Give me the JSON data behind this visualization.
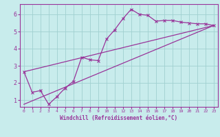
{
  "xlabel": "Windchill (Refroidissement éolien,°C)",
  "background_color": "#c8ecec",
  "grid_color": "#a0d0d0",
  "line_color": "#993399",
  "xlim": [
    -0.5,
    23.5
  ],
  "ylim": [
    0.6,
    6.6
  ],
  "xticks": [
    0,
    1,
    2,
    3,
    4,
    5,
    6,
    7,
    8,
    9,
    10,
    11,
    12,
    13,
    14,
    15,
    16,
    17,
    18,
    19,
    20,
    21,
    22,
    23
  ],
  "yticks": [
    1,
    2,
    3,
    4,
    5,
    6
  ],
  "series1_x": [
    0,
    1,
    2,
    3,
    4,
    5,
    6,
    7,
    8,
    9,
    10,
    11,
    12,
    13,
    14,
    15,
    16,
    17,
    18,
    19,
    20,
    21,
    22,
    23
  ],
  "series1_y": [
    2.65,
    1.45,
    1.55,
    0.75,
    1.2,
    1.7,
    2.1,
    3.5,
    3.35,
    3.3,
    4.55,
    5.1,
    5.75,
    6.3,
    6.0,
    5.95,
    5.6,
    5.65,
    5.65,
    5.55,
    5.5,
    5.45,
    5.45,
    5.35
  ],
  "series2_x": [
    0,
    23
  ],
  "series2_y": [
    0.75,
    5.35
  ],
  "series3_x": [
    0,
    23
  ],
  "series3_y": [
    2.65,
    5.35
  ]
}
